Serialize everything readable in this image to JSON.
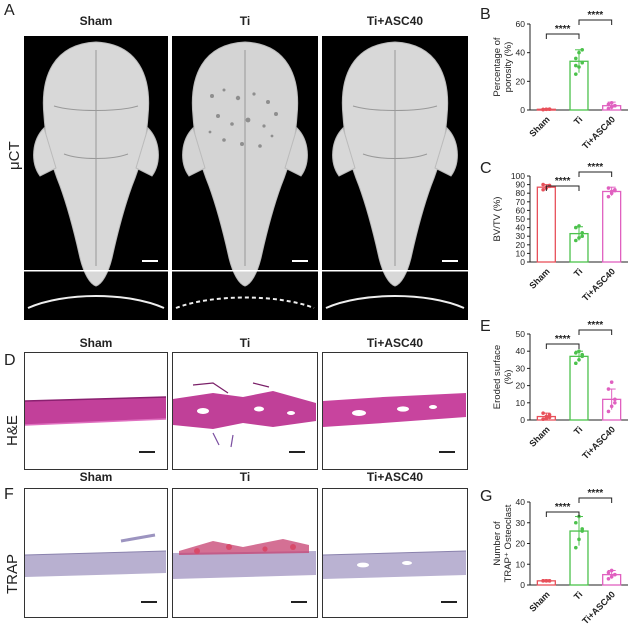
{
  "panel_letters": {
    "A": "A",
    "B": "B",
    "C": "C",
    "D": "D",
    "E": "E",
    "F": "F",
    "G": "G"
  },
  "groups": [
    "Sham",
    "Ti",
    "Ti+ASC40"
  ],
  "row_labels": {
    "uct": "μCT",
    "he": "H&E",
    "trap": "TRAP"
  },
  "significance": "****",
  "colors": {
    "sham": "#e8505a",
    "ti": "#4cc24c",
    "asc": "#e060c0"
  },
  "chart_data": [
    {
      "type": "bar",
      "panel": "B",
      "categories": [
        "Sham",
        "Ti",
        "Ti+ASC40"
      ],
      "values": [
        0.5,
        34,
        3
      ],
      "errors": [
        0.3,
        8,
        2.5
      ],
      "points": [
        [
          0.3,
          0.5,
          0.6,
          0.4,
          0.5,
          0.6
        ],
        [
          25,
          30,
          33,
          36,
          40,
          42,
          31
        ],
        [
          1,
          2,
          3,
          4,
          5,
          3
        ]
      ],
      "ylabel": "Percentage of porosity (%)",
      "ylim": [
        0,
        60
      ],
      "yticks": [
        0,
        20,
        40,
        60
      ],
      "comparisons": [
        [
          "Sham",
          "Ti",
          "****"
        ],
        [
          "Ti",
          "Ti+ASC40",
          "****"
        ]
      ]
    },
    {
      "type": "bar",
      "panel": "C",
      "categories": [
        "Sham",
        "Ti",
        "Ti+ASC40"
      ],
      "values": [
        87,
        33,
        82
      ],
      "errors": [
        3,
        8,
        5
      ],
      "points": [
        [
          84,
          86,
          88,
          90,
          87,
          89
        ],
        [
          25,
          28,
          34,
          40,
          42,
          30
        ],
        [
          76,
          80,
          84,
          86,
          82,
          83
        ]
      ],
      "ylabel": "BV/TV (%)",
      "ylim": [
        0,
        100
      ],
      "yticks": [
        0,
        10,
        20,
        30,
        40,
        50,
        60,
        70,
        80,
        90,
        100
      ],
      "comparisons": [
        [
          "Sham",
          "Ti",
          "****"
        ],
        [
          "Ti",
          "Ti+ASC40",
          "****"
        ]
      ]
    },
    {
      "type": "bar",
      "panel": "E",
      "categories": [
        "Sham",
        "Ti",
        "Ti+ASC40"
      ],
      "values": [
        2,
        37,
        12
      ],
      "errors": [
        2,
        3,
        6
      ],
      "points": [
        [
          0.5,
          1,
          3,
          4,
          2,
          1.5
        ],
        [
          33,
          35,
          37,
          39,
          40,
          38
        ],
        [
          5,
          8,
          12,
          18,
          22,
          10
        ]
      ],
      "ylabel": "Eroded surface (%)",
      "ylim": [
        0,
        50
      ],
      "yticks": [
        0,
        10,
        20,
        30,
        40,
        50
      ],
      "comparisons": [
        [
          "Sham",
          "Ti",
          "****"
        ],
        [
          "Ti",
          "Ti+ASC40",
          "****"
        ]
      ]
    },
    {
      "type": "bar",
      "panel": "G",
      "categories": [
        "Sham",
        "Ti",
        "Ti+ASC40"
      ],
      "values": [
        2,
        26,
        5
      ],
      "errors": [
        0.5,
        7,
        2
      ],
      "points": [
        [
          2,
          2,
          2,
          2,
          2,
          2
        ],
        [
          18,
          22,
          26,
          30,
          33,
          27
        ],
        [
          3,
          4,
          5,
          6,
          7,
          5
        ]
      ],
      "ylabel": "Number of TRAP⁺ Osteoclast",
      "ylim": [
        0,
        40
      ],
      "yticks": [
        0,
        10,
        20,
        30,
        40
      ],
      "comparisons": [
        [
          "Sham",
          "Ti",
          "****"
        ],
        [
          "Ti",
          "Ti+ASC40",
          "****"
        ]
      ]
    }
  ]
}
